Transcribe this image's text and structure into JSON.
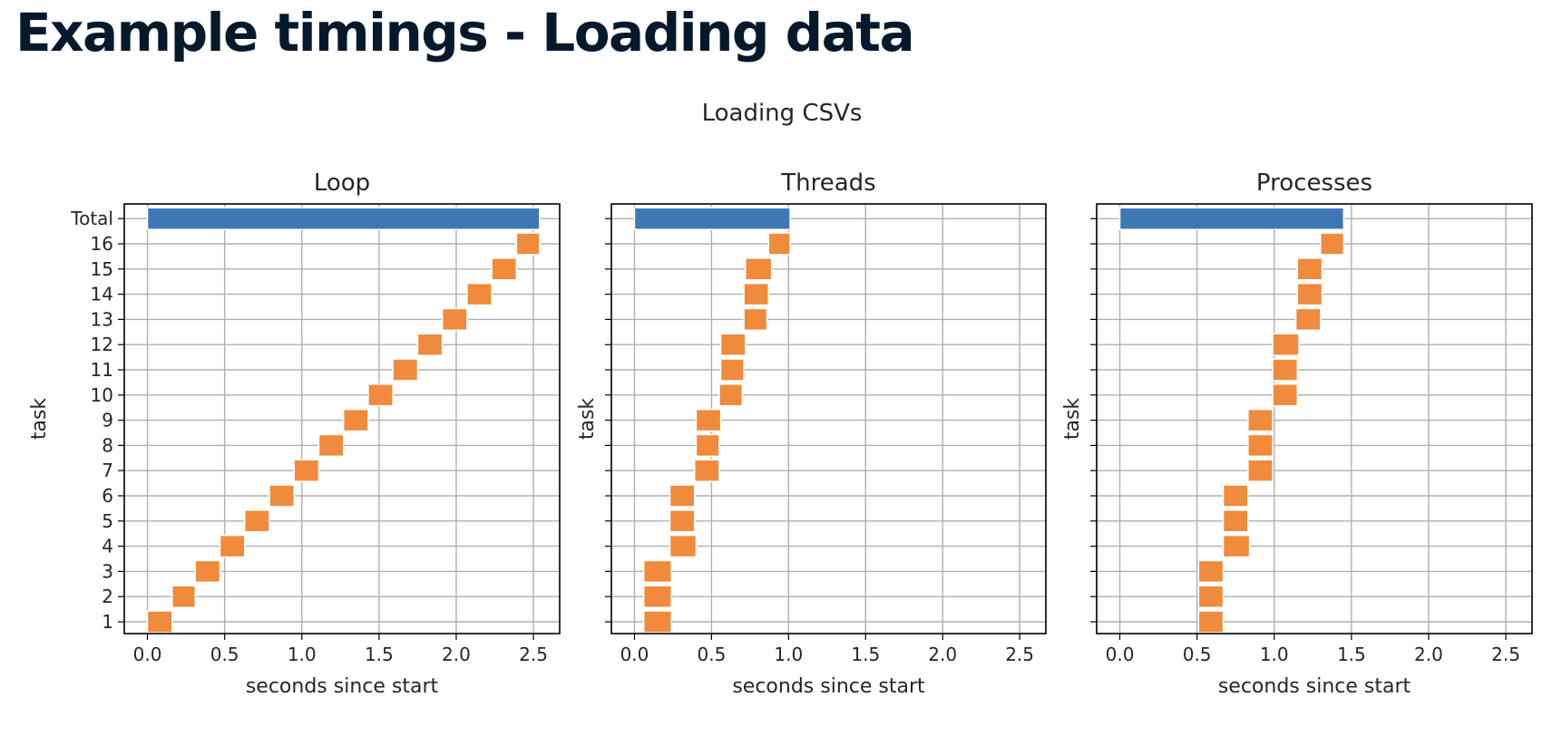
{
  "page": {
    "title": "Example timings - Loading data"
  },
  "chart_data": {
    "type": "bar",
    "suptitle": "Loading CSVs",
    "xlabel": "seconds since start",
    "ylabel": "task",
    "xlim": [
      -0.15,
      2.67
    ],
    "xticks": [
      0.0,
      0.5,
      1.0,
      1.5,
      2.0,
      2.5
    ],
    "xtick_labels": [
      "0.0",
      "0.5",
      "1.0",
      "1.5",
      "2.0",
      "2.5"
    ],
    "categories": [
      "1",
      "2",
      "3",
      "4",
      "5",
      "6",
      "7",
      "8",
      "9",
      "10",
      "11",
      "12",
      "13",
      "14",
      "15",
      "16",
      "Total"
    ],
    "grid": true,
    "colors": {
      "task": "#f08a3c",
      "total": "#3d77b6",
      "grid": "#b0b0b0",
      "text": "#262626"
    },
    "panels": [
      {
        "title": "Loop",
        "tasks": [
          {
            "task": "1",
            "start": 0.0,
            "end": 0.16
          },
          {
            "task": "2",
            "start": 0.16,
            "end": 0.31
          },
          {
            "task": "3",
            "start": 0.31,
            "end": 0.47
          },
          {
            "task": "4",
            "start": 0.47,
            "end": 0.63
          },
          {
            "task": "5",
            "start": 0.63,
            "end": 0.79
          },
          {
            "task": "6",
            "start": 0.79,
            "end": 0.95
          },
          {
            "task": "7",
            "start": 0.95,
            "end": 1.11
          },
          {
            "task": "8",
            "start": 1.11,
            "end": 1.27
          },
          {
            "task": "9",
            "start": 1.27,
            "end": 1.43
          },
          {
            "task": "10",
            "start": 1.43,
            "end": 1.59
          },
          {
            "task": "11",
            "start": 1.59,
            "end": 1.75
          },
          {
            "task": "12",
            "start": 1.75,
            "end": 1.91
          },
          {
            "task": "13",
            "start": 1.91,
            "end": 2.07
          },
          {
            "task": "14",
            "start": 2.07,
            "end": 2.23
          },
          {
            "task": "15",
            "start": 2.23,
            "end": 2.39
          },
          {
            "task": "16",
            "start": 2.39,
            "end": 2.54
          }
        ],
        "total": {
          "start": 0.0,
          "end": 2.54
        }
      },
      {
        "title": "Threads",
        "tasks": [
          {
            "task": "1",
            "start": 0.06,
            "end": 0.24
          },
          {
            "task": "2",
            "start": 0.06,
            "end": 0.24
          },
          {
            "task": "3",
            "start": 0.06,
            "end": 0.24
          },
          {
            "task": "4",
            "start": 0.23,
            "end": 0.4
          },
          {
            "task": "5",
            "start": 0.23,
            "end": 0.39
          },
          {
            "task": "6",
            "start": 0.23,
            "end": 0.39
          },
          {
            "task": "7",
            "start": 0.39,
            "end": 0.55
          },
          {
            "task": "8",
            "start": 0.4,
            "end": 0.55
          },
          {
            "task": "9",
            "start": 0.4,
            "end": 0.56
          },
          {
            "task": "10",
            "start": 0.55,
            "end": 0.7
          },
          {
            "task": "11",
            "start": 0.56,
            "end": 0.71
          },
          {
            "task": "12",
            "start": 0.56,
            "end": 0.72
          },
          {
            "task": "13",
            "start": 0.71,
            "end": 0.86
          },
          {
            "task": "14",
            "start": 0.71,
            "end": 0.87
          },
          {
            "task": "15",
            "start": 0.72,
            "end": 0.89
          },
          {
            "task": "16",
            "start": 0.87,
            "end": 1.01
          }
        ],
        "total": {
          "start": 0.0,
          "end": 1.01
        }
      },
      {
        "title": "Processes",
        "tasks": [
          {
            "task": "1",
            "start": 0.51,
            "end": 0.67
          },
          {
            "task": "2",
            "start": 0.51,
            "end": 0.67
          },
          {
            "task": "3",
            "start": 0.51,
            "end": 0.67
          },
          {
            "task": "4",
            "start": 0.67,
            "end": 0.84
          },
          {
            "task": "5",
            "start": 0.67,
            "end": 0.83
          },
          {
            "task": "6",
            "start": 0.67,
            "end": 0.83
          },
          {
            "task": "7",
            "start": 0.83,
            "end": 0.99
          },
          {
            "task": "8",
            "start": 0.83,
            "end": 0.99
          },
          {
            "task": "9",
            "start": 0.83,
            "end": 0.99
          },
          {
            "task": "10",
            "start": 0.99,
            "end": 1.15
          },
          {
            "task": "11",
            "start": 0.99,
            "end": 1.15
          },
          {
            "task": "12",
            "start": 0.99,
            "end": 1.16
          },
          {
            "task": "13",
            "start": 1.14,
            "end": 1.3
          },
          {
            "task": "14",
            "start": 1.15,
            "end": 1.31
          },
          {
            "task": "15",
            "start": 1.15,
            "end": 1.31
          },
          {
            "task": "16",
            "start": 1.3,
            "end": 1.45
          }
        ],
        "total": {
          "start": 0.0,
          "end": 1.45
        }
      }
    ]
  }
}
